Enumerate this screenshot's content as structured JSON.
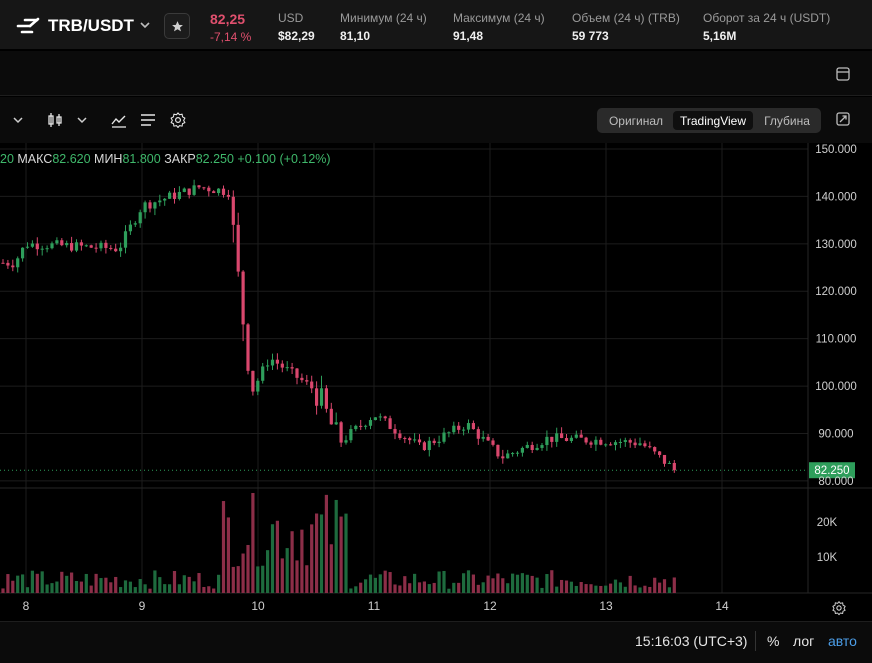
{
  "ticker": {
    "pair": "TRB/USDT",
    "price": "82,25",
    "change": "-7,14 %",
    "stats": [
      {
        "label": "USD",
        "value": "$82,29"
      },
      {
        "label": "Минимум (24 ч)",
        "value": "81,10"
      },
      {
        "label": "Максимум (24 ч)",
        "value": "91,48"
      },
      {
        "label": "Объем (24 ч) (TRB)",
        "value": "59 773"
      },
      {
        "label": "Оборот за 24 ч (USDT)",
        "value": "5,16M"
      }
    ]
  },
  "view_switch": [
    "Оригинал",
    "TradingView",
    "Глубина"
  ],
  "view_switch_active": "TradingView",
  "ohlc": {
    "open_partial": "20",
    "high_label": "МАКС",
    "high": "82.620",
    "low_label": "МИН",
    "low": "81.800",
    "close_label": "ЗАКР",
    "close": "82.250",
    "change": "+0.100 (+0.12%)"
  },
  "chart_data": {
    "type": "candlestick",
    "y_ticks": [
      "150.000",
      "140.000",
      "130.000",
      "120.000",
      "110.000",
      "100.000",
      "90.000",
      "80.000"
    ],
    "y_range": [
      78.5,
      150
    ],
    "last_price_label": "82.250",
    "last_price": 82.25,
    "x_ticks": [
      "8",
      "9",
      "10",
      "11",
      "12",
      "13",
      "14"
    ],
    "volume_ticks": [
      "20K",
      "10K"
    ],
    "up_color": "#2e9e5b",
    "down_color": "#d9476d",
    "key_levels": [
      {
        "day": "7.9",
        "price": 126
      },
      {
        "day": "8.0",
        "price": 130
      },
      {
        "day": "8.8",
        "price": 129
      },
      {
        "day": "9.0",
        "price": 138
      },
      {
        "day": "9.5",
        "price": 142
      },
      {
        "day": "9.75",
        "price": 141
      },
      {
        "day": "9.85",
        "price": 118
      },
      {
        "day": "9.95",
        "price": 99
      },
      {
        "day": "10.1",
        "price": 106
      },
      {
        "day": "10.5",
        "price": 99
      },
      {
        "day": "10.7",
        "price": 88
      },
      {
        "day": "11.0",
        "price": 94
      },
      {
        "day": "11.4",
        "price": 87
      },
      {
        "day": "11.8",
        "price": 92
      },
      {
        "day": "12.1",
        "price": 85
      },
      {
        "day": "12.5",
        "price": 89
      },
      {
        "day": "13.0",
        "price": 88.5
      },
      {
        "day": "13.3",
        "price": 88
      },
      {
        "day": "13.6",
        "price": 82.25
      }
    ]
  },
  "bottom": {
    "clock": "15:16:03 (UTC+3)",
    "percent": "%",
    "log": "лог",
    "auto": "авто"
  }
}
